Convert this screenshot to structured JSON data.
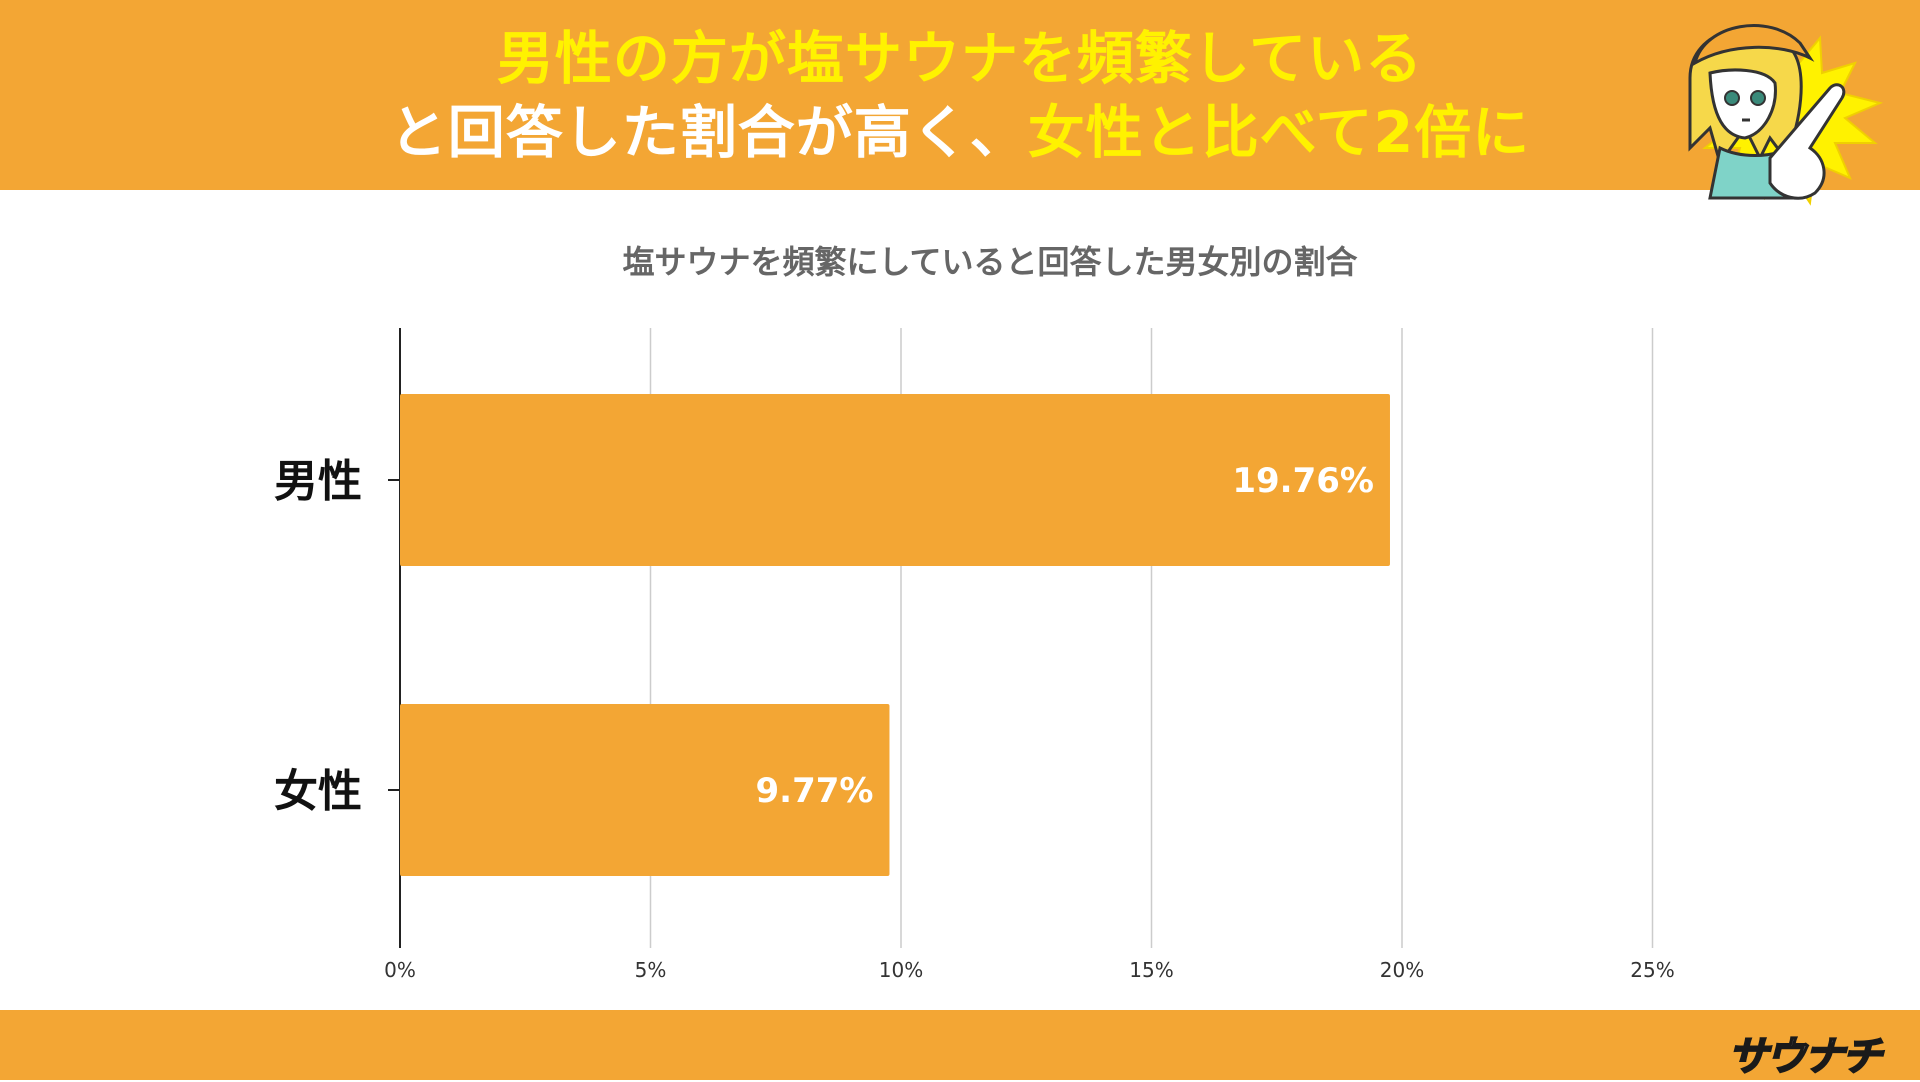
{
  "header": {
    "line1": "男性の方が塩サウナを頻繁している",
    "line2_white": "と回答した割合が高く、",
    "line2_yellow": "女性と比べて2倍に"
  },
  "brand": {
    "logo": "サウナチ",
    "mascot_icon": "pointing-girl-mascot"
  },
  "colors": {
    "accent": "#F3A634",
    "highlight": "#FFF200",
    "bar": "#F3A634"
  },
  "chart_data": {
    "type": "bar",
    "orientation": "horizontal",
    "title": "塩サウナを頻繁にしていると回答した男女別の割合",
    "categories": [
      "男性",
      "女性"
    ],
    "values": [
      19.76,
      9.77
    ],
    "value_labels": [
      "19.76%",
      "9.77%"
    ],
    "xlim": [
      0,
      25
    ],
    "xticks": [
      0,
      5,
      10,
      15,
      20,
      25
    ],
    "xtick_labels": [
      "0%",
      "5%",
      "10%",
      "15%",
      "20%",
      "25%"
    ],
    "xlabel": "",
    "ylabel": "",
    "grid": true
  }
}
